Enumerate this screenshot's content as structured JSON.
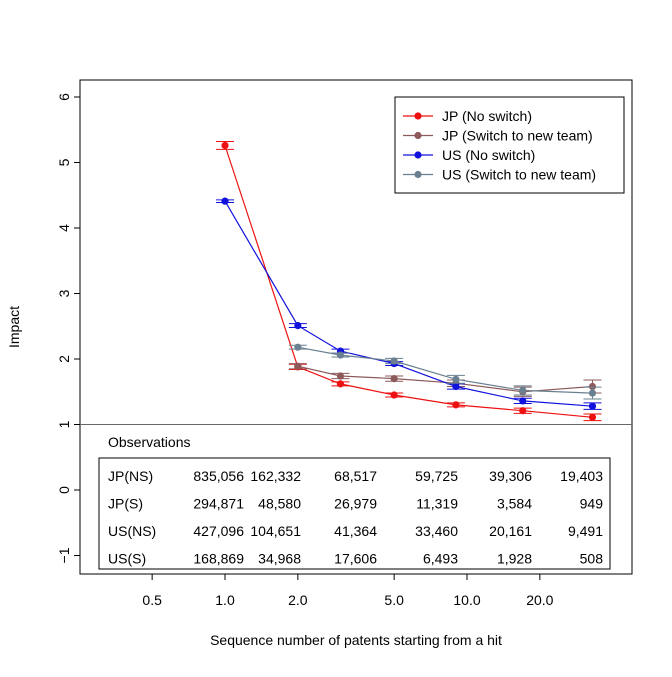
{
  "chart_data": {
    "type": "line",
    "title": "",
    "xlabel": "Sequence number of patents starting from a hit",
    "ylabel": "Impact",
    "xscale": "log",
    "xlim": [
      0.3,
      42
    ],
    "ylim": [
      -1.3,
      6.2
    ],
    "xticks": [
      0.5,
      1,
      2,
      5,
      10,
      20
    ],
    "xtick_labels": [
      "0.5",
      "1.0",
      "2.0",
      "5.0",
      "10.0",
      "20.0"
    ],
    "yticks": [
      -1,
      0,
      1,
      2,
      3,
      4,
      5,
      6
    ],
    "ytick_labels": [
      "−1",
      "0",
      "1",
      "2",
      "3",
      "4",
      "5",
      "6"
    ],
    "reference_line": 1,
    "legend_position": "top-right",
    "grid": false,
    "series": [
      {
        "name": "JP (No switch)",
        "color": "#ee1111",
        "x": [
          1,
          2,
          3,
          5,
          9,
          17,
          33
        ],
        "y": [
          5.26,
          1.88,
          1.62,
          1.45,
          1.3,
          1.21,
          1.11
        ],
        "err": [
          0.06,
          0.04,
          0.03,
          0.03,
          0.03,
          0.04,
          0.05
        ]
      },
      {
        "name": "JP (Switch to new team)",
        "color": "#8c5a5a",
        "x": [
          2,
          3,
          5,
          9,
          17,
          33
        ],
        "y": [
          1.89,
          1.74,
          1.7,
          1.63,
          1.5,
          1.58
        ],
        "err": [
          0.04,
          0.04,
          0.04,
          0.05,
          0.07,
          0.1
        ]
      },
      {
        "name": "US (No switch)",
        "color": "#1111dd",
        "x": [
          1,
          2,
          3,
          5,
          9,
          17,
          33
        ],
        "y": [
          4.41,
          2.51,
          2.12,
          1.93,
          1.58,
          1.36,
          1.28
        ],
        "err": [
          0.02,
          0.03,
          0.03,
          0.03,
          0.04,
          0.04,
          0.05
        ]
      },
      {
        "name": "US (Switch to new team)",
        "color": "#6a8090",
        "x": [
          2,
          3,
          5,
          9,
          17,
          33
        ],
        "y": [
          2.18,
          2.06,
          1.97,
          1.69,
          1.52,
          1.48
        ],
        "err": [
          0.03,
          0.03,
          0.04,
          0.06,
          0.07,
          0.09
        ]
      }
    ],
    "observations": {
      "title": "Observations",
      "rows": [
        {
          "label": "JP(NS)",
          "values": [
            "835,056",
            "162,332",
            "68,517",
            "59,725",
            "39,306",
            "19,403"
          ]
        },
        {
          "label": "JP(S)",
          "values": [
            "294,871",
            "48,580",
            "26,979",
            "11,319",
            "3,584",
            "949"
          ]
        },
        {
          "label": "US(NS)",
          "values": [
            "427,096",
            "104,651",
            "41,364",
            "33,460",
            "20,161",
            "9,491"
          ]
        },
        {
          "label": "US(S)",
          "values": [
            "168,869",
            "34,968",
            "17,606",
            "6,493",
            "1,928",
            "508"
          ]
        }
      ]
    }
  }
}
